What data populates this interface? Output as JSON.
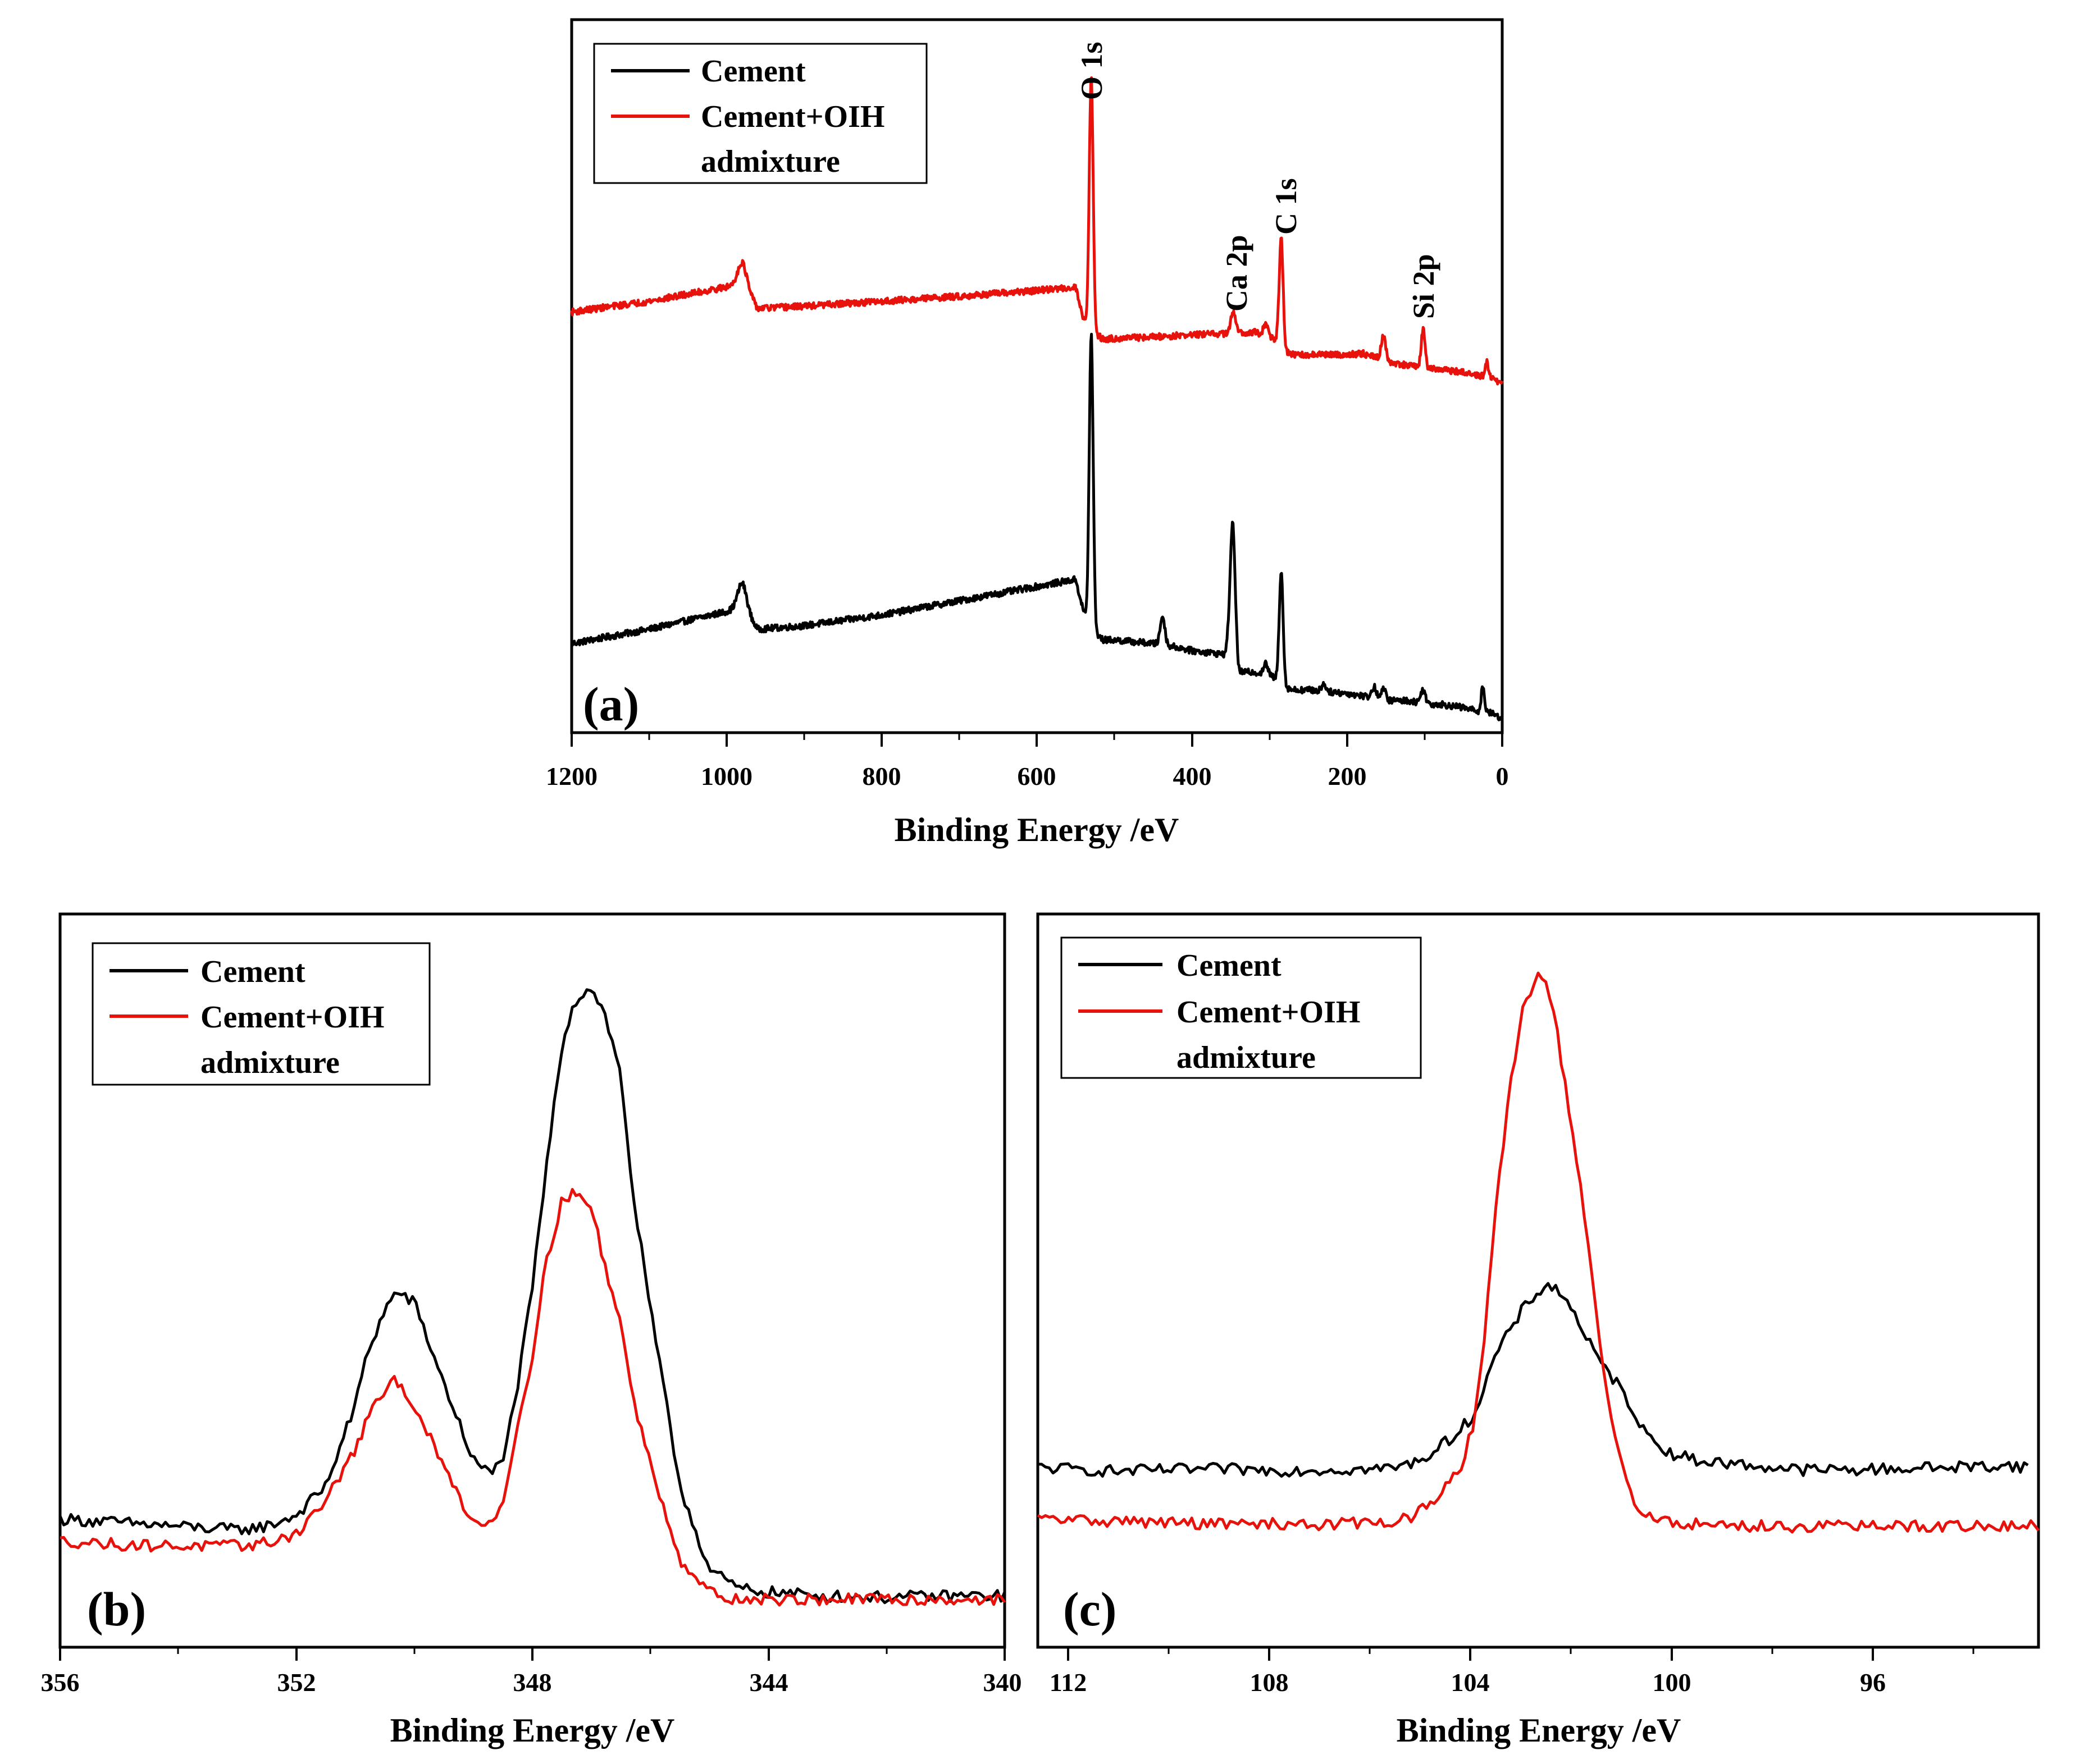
{
  "chart_data": [
    {
      "type": "line",
      "panel_label": "(a)",
      "xlabel": "Binding Energy /eV",
      "ylabel": "",
      "xlim": [
        1200,
        0
      ],
      "x_reversed": true,
      "xticks": [
        1200,
        1000,
        800,
        600,
        400,
        200,
        0
      ],
      "ylim": [
        0,
        100
      ],
      "legend_position": "top-left",
      "annotations": [
        {
          "text": "O 1s",
          "x": 530
        },
        {
          "text": "Ca 2p",
          "x": 347
        },
        {
          "text": "C 1s",
          "x": 285
        },
        {
          "text": "Si 2p",
          "x": 102
        }
      ],
      "series": [
        {
          "name": "Cement",
          "color": "#000000",
          "baseline": {
            "x": [
              1200,
              1100,
              1000,
              980,
              960,
              900,
              800,
              700,
              600,
              550,
              540,
              525,
              515,
              500,
              450,
              420,
              400,
              360,
              340,
              320,
              300,
              290,
              283,
              270,
              250,
              200,
              170,
              150,
              120,
              100,
              80,
              50,
              30,
              20,
              10,
              0
            ],
            "y": [
              12.5,
              14.5,
              17.0,
              17.5,
              14.5,
              15.0,
              16.5,
              18.5,
              20.5,
              21.5,
              17.0,
              14.0,
              13.0,
              13.0,
              12.5,
              12.0,
              11.5,
              11.0,
              8.5,
              8.5,
              8.0,
              7.5,
              6.5,
              6.0,
              6.0,
              5.5,
              5.0,
              4.5,
              4.5,
              4.0,
              4.0,
              3.5,
              3.0,
              3.0,
              2.5,
              2.0
            ]
          },
          "peaks": [
            {
              "x": 980,
              "h": 3.5,
              "w": 6
            },
            {
              "x": 530,
              "h": 41.0,
              "w": 2.5
            },
            {
              "x": 438,
              "h": 4.0,
              "w": 3
            },
            {
              "x": 347,
              "h": 17.5,
              "w": 3
            },
            {
              "x": 351,
              "h": 5.0,
              "w": 3
            },
            {
              "x": 305,
              "h": 1.5,
              "w": 3
            },
            {
              "x": 285,
              "h": 16.0,
              "w": 2.5
            },
            {
              "x": 230,
              "h": 1.0,
              "w": 3
            },
            {
              "x": 165,
              "h": 1.5,
              "w": 3
            },
            {
              "x": 153,
              "h": 1.5,
              "w": 3
            },
            {
              "x": 102,
              "h": 2.0,
              "w": 3
            },
            {
              "x": 25,
              "h": 3.5,
              "w": 2
            }
          ]
        },
        {
          "name": "Cement+OIH admixture",
          "color": "#e8120c",
          "baseline": {
            "x": [
              1200,
              1100,
              1000,
              980,
              960,
              900,
              800,
              700,
              600,
              550,
              540,
              525,
              515,
              500,
              450,
              400,
              350,
              320,
              300,
              290,
              283,
              270,
              250,
              200,
              180,
              160,
              150,
              120,
              100,
              80,
              50,
              30,
              20,
              10,
              0
            ],
            "y": [
              59.0,
              60.5,
              62.5,
              63.0,
              59.5,
              59.8,
              60.5,
              61.2,
              62.0,
              62.5,
              58.0,
              56.0,
              55.2,
              55.3,
              55.5,
              55.8,
              56.0,
              56.2,
              55.5,
              55.0,
              53.5,
              53.0,
              53.0,
              53.0,
              53.2,
              52.5,
              52.0,
              51.5,
              51.0,
              51.0,
              50.5,
              50.0,
              50.0,
              49.5,
              49.0
            ]
          },
          "peaks": [
            {
              "x": 980,
              "h": 3.0,
              "w": 6
            },
            {
              "x": 530,
              "h": 35.5,
              "w": 2.5
            },
            {
              "x": 347,
              "h": 3.0,
              "w": 3
            },
            {
              "x": 305,
              "h": 1.5,
              "w": 3
            },
            {
              "x": 285,
              "h": 15.5,
              "w": 2.5
            },
            {
              "x": 153,
              "h": 3.5,
              "w": 3
            },
            {
              "x": 102,
              "h": 5.5,
              "w": 2.5
            },
            {
              "x": 20,
              "h": 2.0,
              "w": 2
            }
          ]
        }
      ]
    },
    {
      "type": "line",
      "panel_label": "(b)",
      "xlabel": "Binding Energy /eV",
      "ylabel": "",
      "xlim": [
        356,
        340
      ],
      "x_reversed": true,
      "xticks": [
        356,
        352,
        348,
        344,
        340
      ],
      "ylim": [
        0,
        100
      ],
      "legend_position": "top-left",
      "series": [
        {
          "name": "Cement",
          "color": "#000000",
          "x": [
            356,
            355,
            354,
            353,
            352.5,
            352,
            351.5,
            351,
            350.8,
            350.5,
            350.3,
            350,
            349.5,
            349,
            348.7,
            348.5,
            348.3,
            348,
            347.8,
            347.5,
            347.3,
            347,
            346.8,
            346.5,
            346.3,
            346,
            345.5,
            345,
            344.5,
            344,
            343,
            342,
            341,
            340
          ],
          "y": [
            17.5,
            17,
            16.5,
            16,
            16.5,
            18,
            22,
            33,
            40,
            46,
            48.5,
            47,
            36,
            25.5,
            23.5,
            26,
            33,
            49,
            63,
            82,
            88,
            90,
            87,
            78,
            62,
            46,
            22,
            10.5,
            8,
            7.5,
            7,
            6.8,
            7,
            7
          ]
        },
        {
          "name": "Cement+OIH admixture",
          "color": "#e8120c",
          "x": [
            356,
            355,
            354,
            353,
            352.5,
            352,
            351.5,
            351,
            350.8,
            350.5,
            350.3,
            350,
            349.5,
            349,
            348.7,
            348.5,
            348.3,
            348,
            347.8,
            347.5,
            347.3,
            347,
            346.8,
            346.5,
            346.3,
            346,
            345.5,
            345,
            344.5,
            344,
            343,
            342,
            341,
            340
          ],
          "y": [
            14.5,
            14,
            13.8,
            13.8,
            14.2,
            15.5,
            20,
            27,
            31,
            35,
            36.5,
            33,
            24.5,
            17,
            17,
            20,
            28,
            40,
            51,
            61,
            62,
            60,
            53,
            44,
            34,
            25,
            12,
            7.5,
            6.5,
            6.5,
            6.5,
            6.5,
            6.5,
            6.5
          ]
        }
      ]
    },
    {
      "type": "line",
      "panel_label": "(c)",
      "xlabel": "Binding Energy /eV",
      "ylabel": "",
      "xlim": [
        112.5,
        93.5
      ],
      "x_reversed": true,
      "xticks": [
        112,
        108,
        104,
        100,
        96
      ],
      "ylim": [
        0,
        100
      ],
      "legend_position": "top-left",
      "series": [
        {
          "name": "Cement",
          "color": "#000000",
          "x": [
            112.5,
            111,
            110,
            109,
            108,
            107,
            106,
            105.5,
            105,
            104.5,
            104.2,
            104,
            103.8,
            103.5,
            103.3,
            103,
            102.8,
            102.6,
            102.3,
            102,
            101.8,
            101.5,
            101.2,
            101,
            100.5,
            100,
            99,
            98,
            97,
            96,
            95,
            94,
            93.7
          ],
          "y": [
            24.5,
            24,
            24.2,
            24.3,
            24.1,
            24.2,
            24.3,
            24.8,
            26.5,
            29.5,
            32,
            36,
            40,
            43.5,
            46,
            48.5,
            49.5,
            48.5,
            45.5,
            41,
            38.5,
            36,
            32.5,
            29.5,
            26.5,
            25.5,
            24.8,
            24.2,
            24.2,
            24.4,
            24.6,
            24.8,
            24.5
          ]
        },
        {
          "name": "Cement+OIH admixture",
          "color": "#e8120c",
          "x": [
            112.5,
            111,
            110,
            109,
            108,
            107,
            106,
            105.5,
            105,
            104.5,
            104.2,
            104,
            103.8,
            103.5,
            103.3,
            103,
            102.8,
            102.6,
            102.3,
            102,
            101.8,
            101.5,
            101.2,
            101,
            100.5,
            100,
            99,
            98,
            97,
            96,
            95,
            94,
            93.5
          ],
          "y": [
            17.5,
            17.2,
            17,
            16.8,
            16.8,
            16.8,
            17,
            17.5,
            19.5,
            24,
            31,
            44,
            60,
            78,
            87,
            91.5,
            90,
            82,
            68,
            52,
            39,
            27,
            20,
            18,
            17,
            16.8,
            16.5,
            16.5,
            16.5,
            16.5,
            16.5,
            16.5,
            16.5
          ]
        }
      ]
    }
  ],
  "panel_a": {
    "label": "(a)",
    "xlabel": "Binding Energy /eV",
    "xtick_labels": [
      "1200",
      "1000",
      "800",
      "600",
      "400",
      "200",
      "0"
    ],
    "legend": {
      "cement": "Cement",
      "oih_line1": "Cement+OIH",
      "oih_line2": "admixture"
    },
    "peaks": {
      "o1s": "O 1s",
      "ca2p": "Ca 2p",
      "c1s": "C 1s",
      "si2p": "Si 2p"
    }
  },
  "panel_b": {
    "label": "(b)",
    "xlabel": "Binding Energy /eV",
    "xtick_labels": [
      "356",
      "352",
      "348",
      "344",
      "340"
    ],
    "legend": {
      "cement": "Cement",
      "oih_line1": "Cement+OIH",
      "oih_line2": "admixture"
    }
  },
  "panel_c": {
    "label": "(c)",
    "xlabel": "Binding Energy /eV",
    "xtick_labels": [
      "112",
      "108",
      "104",
      "100",
      "96"
    ],
    "legend": {
      "cement": "Cement",
      "oih_line1": "Cement+OIH",
      "oih_line2": "admixture"
    }
  }
}
